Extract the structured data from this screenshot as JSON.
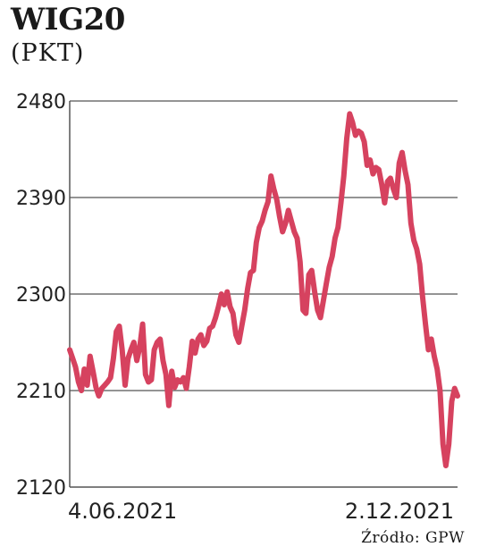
{
  "header": {
    "title": "WIG20",
    "unit": "(PKT)"
  },
  "footer": {
    "source": "Źródło: GPW"
  },
  "colors": {
    "line": "#d6425f",
    "grid": "#555555",
    "text": "#222222"
  },
  "chart_data": {
    "type": "line",
    "title": "WIG20",
    "ylabel": "(PKT)",
    "ylim": [
      2120,
      2480
    ],
    "yticks": [
      2480,
      2390,
      2300,
      2210,
      2120
    ],
    "x_tick_labels": [
      "4.06.2021",
      "2.12.2021"
    ],
    "grid": "horizontal",
    "series": [
      {
        "values": [
          2248,
          2240,
          2232,
          2218,
          2210,
          2230,
          2215,
          2242,
          2228,
          2213,
          2205,
          2212,
          2215,
          2218,
          2222,
          2240,
          2265,
          2270,
          2248,
          2215,
          2240,
          2248,
          2255,
          2238,
          2250,
          2272,
          2225,
          2218,
          2220,
          2248,
          2255,
          2258,
          2238,
          2225,
          2196,
          2228,
          2213,
          2220,
          2218,
          2222,
          2212,
          2232,
          2256,
          2245,
          2258,
          2262,
          2252,
          2256,
          2268,
          2270,
          2278,
          2288,
          2300,
          2290,
          2302,
          2288,
          2282,
          2262,
          2255,
          2270,
          2285,
          2305,
          2320,
          2322,
          2348,
          2362,
          2368,
          2378,
          2386,
          2410,
          2398,
          2388,
          2372,
          2358,
          2366,
          2378,
          2368,
          2358,
          2352,
          2330,
          2285,
          2282,
          2318,
          2322,
          2302,
          2285,
          2278,
          2294,
          2310,
          2325,
          2335,
          2352,
          2362,
          2385,
          2410,
          2445,
          2468,
          2460,
          2448,
          2452,
          2450,
          2442,
          2420,
          2425,
          2412,
          2418,
          2416,
          2402,
          2385,
          2405,
          2408,
          2398,
          2390,
          2422,
          2432,
          2415,
          2402,
          2366,
          2350,
          2342,
          2328,
          2298,
          2272,
          2248,
          2258,
          2242,
          2230,
          2210,
          2160,
          2140,
          2160,
          2200,
          2212,
          2205
        ]
      }
    ]
  }
}
